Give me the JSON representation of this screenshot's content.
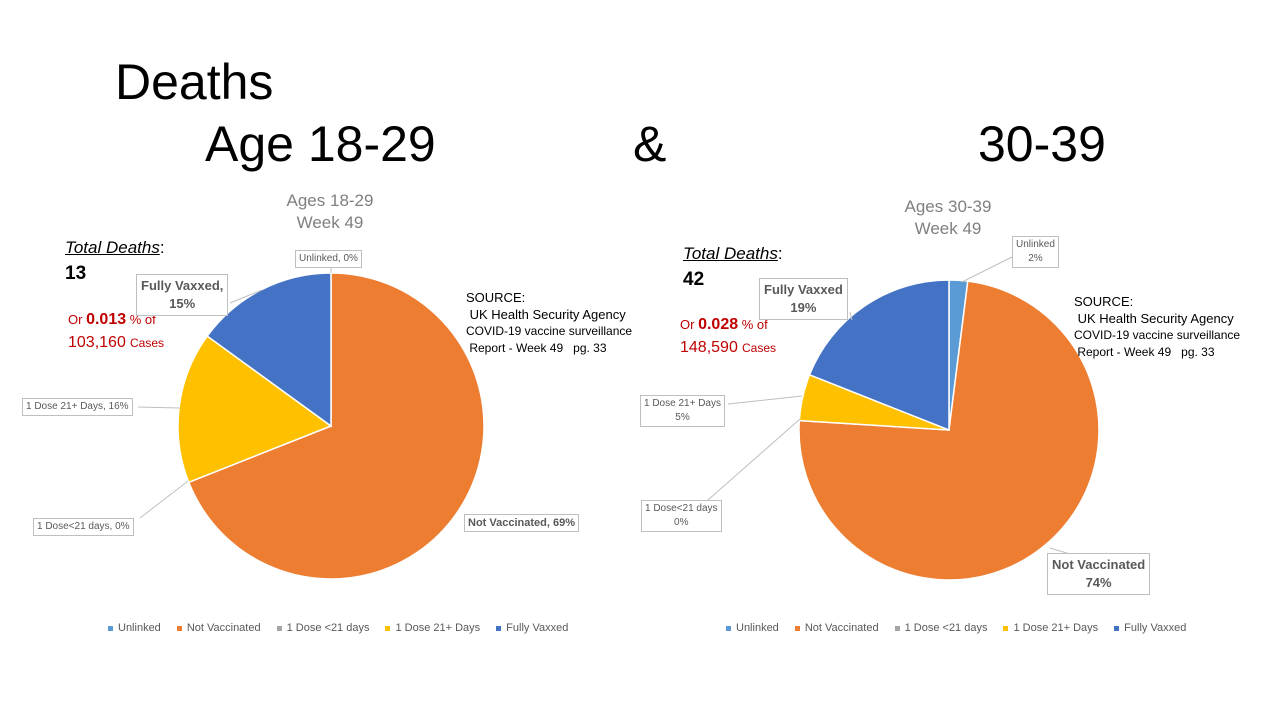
{
  "slide": {
    "title_line1": "Deaths",
    "title_age1": "Age 18-29",
    "title_amp": "&",
    "title_age2": "30-39"
  },
  "colors": {
    "unlinked": "#5b9bd5",
    "not_vaccinated": "#ed7d31",
    "dose_lt21": "#a5a5a5",
    "dose_21plus": "#ffc000",
    "fully_vaxxed": "#4472c4"
  },
  "legend": [
    "Unlinked",
    "Not Vaccinated",
    "1 Dose <21 days",
    "1 Dose 21+ Days",
    "Fully Vaxxed"
  ],
  "chart_data": [
    {
      "type": "pie",
      "title_line1": "Ages 18-29",
      "title_line2": "Week 49",
      "categories": [
        "Unlinked",
        "Not Vaccinated",
        "1 Dose <21 days",
        "1 Dose 21+ Days",
        "Fully Vaxxed"
      ],
      "values": [
        0,
        69,
        0,
        16,
        15
      ],
      "data_labels": {
        "unlinked": "Unlinked, 0%",
        "not_vaccinated": "Not Vaccinated, 69%",
        "dose_lt21": "1 Dose<21 days, 0%",
        "dose_21plus": "1 Dose 21+ Days, 16%",
        "fully_vaxxed_name": "Fully Vaxxed,",
        "fully_vaxxed_pct": "15%"
      },
      "total_deaths_label": "Total Deaths",
      "total_deaths_colon": ":",
      "total_deaths": "13",
      "or_prefix": "Or",
      "or_pct": "0.013",
      "or_suffix": "% of",
      "cases_num": "103,160",
      "cases_word": "Cases",
      "source": [
        "SOURCE:",
        " UK Health Security Agency",
        "COVID-19 vaccine surveillance",
        " Report - Week 49   pg. 33"
      ]
    },
    {
      "type": "pie",
      "title_line1": "Ages 30-39",
      "title_line2": "Week 49",
      "categories": [
        "Unlinked",
        "Not Vaccinated",
        "1 Dose <21 days",
        "1 Dose 21+ Days",
        "Fully Vaxxed"
      ],
      "values": [
        2,
        74,
        0,
        5,
        19
      ],
      "data_labels": {
        "unlinked_name": "Unlinked",
        "unlinked_pct": "2%",
        "not_vaccinated_name": "Not Vaccinated",
        "not_vaccinated_pct": "74%",
        "dose_lt21_name": "1 Dose<21 days",
        "dose_lt21_pct": "0%",
        "dose_21plus_name": "1 Dose 21+ Days",
        "dose_21plus_pct": "5%",
        "fully_vaxxed_name": "Fully Vaxxed",
        "fully_vaxxed_pct": "19%"
      },
      "total_deaths_label": "Total Deaths",
      "total_deaths_colon": ":",
      "total_deaths": "42",
      "or_prefix": "Or",
      "or_pct": "0.028",
      "or_suffix": "% of",
      "cases_num": "148,590",
      "cases_word": "Cases",
      "source": [
        "SOURCE:",
        " UK Health Security Agency",
        "COVID-19 vaccine surveillance",
        " Report - Week 49   pg. 33"
      ]
    }
  ]
}
